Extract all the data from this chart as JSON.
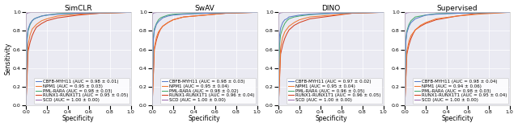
{
  "titles": [
    "SimCLR",
    "SwAV",
    "DINO",
    "Supervised"
  ],
  "xlabel": "Specificity",
  "ylabel": "Sensitivity",
  "classes": [
    "CBFB-MYH11",
    "NPM1",
    "PML-RARA",
    "RUNX1-RUNX1T1",
    "SCD"
  ],
  "colors": [
    "#5b7ec9",
    "#f07832",
    "#4aad6f",
    "#d44020",
    "#9b72b0"
  ],
  "legend_labels": {
    "SimCLR": [
      "CBFB-MYH11 (AUC = 0.98 ± 0.01)",
      "NPM1 (AUC = 0.95 ± 0.03)",
      "PML-RARA (AUC = 0.98 ± 0.03)",
      "RUNX1-RUNX1T1 (AUC = 0.95 ± 0.05)",
      "SCD (AUC = 1.00 ± 0.00)"
    ],
    "SwAV": [
      "CBFB-MYH11 (AUC = 0.98 ± 0.03)",
      "NPM1 (AUC = 0.95 ± 0.04)",
      "PML-RARA (AUC = 0.98 ± 0.02)",
      "RUNX1-RUNX1T1 (AUC = 0.96 ± 0.04)",
      "SCD (AUC = 1.00 ± 0.00)"
    ],
    "DINO": [
      "CBFB-MYH11 (AUC = 0.97 ± 0.02)",
      "NPM1 (AUC = 0.95 ± 0.04)",
      "PML-RARA (AUC = 0.96 ± 0.05)",
      "RUNX1-RUNX1T1 (AUC = 0.96 ± 0.05)",
      "SCD (AUC = 1.00 ± 0.00)"
    ],
    "Supervised": [
      "CBFB-MYH11 (AUC = 0.98 ± 0.04)",
      "NPM1 (AUC = 0.94 ± 0.06)",
      "PML-RARA (AUC = 0.98 ± 0.03)",
      "RUNX1-RUNX1T1 (AUC = 0.95 ± 0.04)",
      "SCD (AUC = 1.00 ± 0.00)"
    ]
  },
  "roc_curves": {
    "SimCLR": {
      "CBFB-MYH11": {
        "fpr": [
          0,
          0.01,
          0.02,
          0.04,
          0.06,
          0.08,
          0.1,
          0.15,
          0.2,
          0.3,
          0.5,
          0.7,
          1.0
        ],
        "tpr": [
          0,
          0.72,
          0.82,
          0.88,
          0.91,
          0.93,
          0.94,
          0.96,
          0.97,
          0.98,
          0.99,
          0.995,
          1.0
        ]
      },
      "NPM1": {
        "fpr": [
          0,
          0.02,
          0.04,
          0.06,
          0.1,
          0.15,
          0.2,
          0.3,
          0.5,
          0.7,
          1.0
        ],
        "tpr": [
          0,
          0.65,
          0.76,
          0.82,
          0.87,
          0.91,
          0.93,
          0.96,
          0.98,
          0.99,
          1.0
        ]
      },
      "PML-RARA": {
        "fpr": [
          0,
          0.01,
          0.02,
          0.04,
          0.06,
          0.08,
          0.1,
          0.15,
          0.2,
          0.3,
          0.5,
          0.7,
          1.0
        ],
        "tpr": [
          0,
          0.7,
          0.8,
          0.87,
          0.91,
          0.93,
          0.94,
          0.96,
          0.97,
          0.985,
          0.99,
          0.995,
          1.0
        ]
      },
      "RUNX1-RUNX1T1": {
        "fpr": [
          0,
          0.02,
          0.04,
          0.06,
          0.08,
          0.1,
          0.15,
          0.2,
          0.3,
          0.5,
          0.7,
          1.0
        ],
        "tpr": [
          0,
          0.58,
          0.68,
          0.75,
          0.8,
          0.84,
          0.88,
          0.91,
          0.94,
          0.97,
          0.99,
          1.0
        ]
      },
      "SCD": {
        "fpr": [
          0,
          0.003,
          0.005,
          0.01,
          0.02,
          0.05,
          0.1,
          1.0
        ],
        "tpr": [
          0,
          0.97,
          0.985,
          0.99,
          0.995,
          1.0,
          1.0,
          1.0
        ]
      }
    },
    "SwAV": {
      "CBFB-MYH11": {
        "fpr": [
          0,
          0.01,
          0.02,
          0.04,
          0.06,
          0.08,
          0.1,
          0.15,
          0.2,
          0.3,
          0.5,
          0.7,
          1.0
        ],
        "tpr": [
          0,
          0.7,
          0.8,
          0.87,
          0.9,
          0.92,
          0.94,
          0.96,
          0.97,
          0.98,
          0.99,
          0.995,
          1.0
        ]
      },
      "NPM1": {
        "fpr": [
          0,
          0.02,
          0.04,
          0.06,
          0.1,
          0.15,
          0.2,
          0.3,
          0.5,
          0.7,
          1.0
        ],
        "tpr": [
          0,
          0.62,
          0.73,
          0.79,
          0.85,
          0.89,
          0.92,
          0.95,
          0.97,
          0.99,
          1.0
        ]
      },
      "PML-RARA": {
        "fpr": [
          0,
          0.01,
          0.02,
          0.04,
          0.06,
          0.08,
          0.1,
          0.15,
          0.2,
          0.3,
          0.5,
          0.7,
          1.0
        ],
        "tpr": [
          0,
          0.72,
          0.82,
          0.88,
          0.92,
          0.94,
          0.95,
          0.97,
          0.98,
          0.985,
          0.99,
          0.995,
          1.0
        ]
      },
      "RUNX1-RUNX1T1": {
        "fpr": [
          0,
          0.02,
          0.04,
          0.06,
          0.08,
          0.1,
          0.15,
          0.2,
          0.3,
          0.5,
          0.7,
          1.0
        ],
        "tpr": [
          0,
          0.6,
          0.7,
          0.77,
          0.82,
          0.85,
          0.89,
          0.92,
          0.95,
          0.97,
          0.99,
          1.0
        ]
      },
      "SCD": {
        "fpr": [
          0,
          0.003,
          0.005,
          0.01,
          0.02,
          0.05,
          0.1,
          1.0
        ],
        "tpr": [
          0,
          0.97,
          0.985,
          0.99,
          0.995,
          1.0,
          1.0,
          1.0
        ]
      }
    },
    "DINO": {
      "CBFB-MYH11": {
        "fpr": [
          0,
          0.005,
          0.01,
          0.02,
          0.04,
          0.06,
          0.08,
          0.1,
          0.15,
          0.2,
          0.3,
          0.5,
          0.7,
          1.0
        ],
        "tpr": [
          0,
          0.65,
          0.75,
          0.83,
          0.89,
          0.92,
          0.93,
          0.95,
          0.96,
          0.97,
          0.98,
          0.99,
          0.995,
          1.0
        ]
      },
      "NPM1": {
        "fpr": [
          0,
          0.02,
          0.04,
          0.06,
          0.1,
          0.15,
          0.2,
          0.3,
          0.5,
          0.7,
          1.0
        ],
        "tpr": [
          0,
          0.62,
          0.73,
          0.79,
          0.85,
          0.89,
          0.92,
          0.95,
          0.97,
          0.99,
          1.0
        ]
      },
      "PML-RARA": {
        "fpr": [
          0,
          0.01,
          0.02,
          0.04,
          0.06,
          0.08,
          0.1,
          0.15,
          0.2,
          0.3,
          0.5,
          0.7,
          1.0
        ],
        "tpr": [
          0,
          0.65,
          0.76,
          0.83,
          0.88,
          0.91,
          0.93,
          0.95,
          0.96,
          0.975,
          0.99,
          0.995,
          1.0
        ]
      },
      "RUNX1-RUNX1T1": {
        "fpr": [
          0,
          0.02,
          0.04,
          0.06,
          0.08,
          0.1,
          0.15,
          0.2,
          0.3,
          0.5,
          0.7,
          1.0
        ],
        "tpr": [
          0,
          0.55,
          0.65,
          0.72,
          0.77,
          0.81,
          0.86,
          0.89,
          0.93,
          0.96,
          0.99,
          1.0
        ]
      },
      "SCD": {
        "fpr": [
          0,
          0.003,
          0.005,
          0.01,
          0.02,
          0.05,
          0.1,
          1.0
        ],
        "tpr": [
          0,
          0.97,
          0.985,
          0.99,
          0.995,
          1.0,
          1.0,
          1.0
        ]
      }
    },
    "Supervised": {
      "CBFB-MYH11": {
        "fpr": [
          0,
          0.01,
          0.02,
          0.04,
          0.06,
          0.08,
          0.1,
          0.15,
          0.2,
          0.3,
          0.5,
          0.7,
          1.0
        ],
        "tpr": [
          0,
          0.68,
          0.78,
          0.85,
          0.89,
          0.91,
          0.93,
          0.95,
          0.97,
          0.98,
          0.99,
          0.995,
          1.0
        ]
      },
      "NPM1": {
        "fpr": [
          0,
          0.02,
          0.04,
          0.06,
          0.1,
          0.15,
          0.2,
          0.3,
          0.5,
          0.7,
          1.0
        ],
        "tpr": [
          0,
          0.58,
          0.69,
          0.75,
          0.81,
          0.86,
          0.89,
          0.93,
          0.96,
          0.98,
          1.0
        ]
      },
      "PML-RARA": {
        "fpr": [
          0,
          0.01,
          0.02,
          0.04,
          0.06,
          0.08,
          0.1,
          0.15,
          0.2,
          0.3,
          0.5,
          0.7,
          1.0
        ],
        "tpr": [
          0,
          0.7,
          0.8,
          0.87,
          0.91,
          0.93,
          0.95,
          0.96,
          0.97,
          0.985,
          0.99,
          0.995,
          1.0
        ]
      },
      "RUNX1-RUNX1T1": {
        "fpr": [
          0,
          0.02,
          0.04,
          0.06,
          0.08,
          0.1,
          0.15,
          0.2,
          0.3,
          0.5,
          0.7,
          1.0
        ],
        "tpr": [
          0,
          0.55,
          0.65,
          0.72,
          0.77,
          0.81,
          0.85,
          0.88,
          0.92,
          0.96,
          0.99,
          1.0
        ]
      },
      "SCD": {
        "fpr": [
          0,
          0.003,
          0.005,
          0.01,
          0.02,
          0.05,
          0.1,
          1.0
        ],
        "tpr": [
          0,
          0.97,
          0.985,
          0.99,
          0.995,
          1.0,
          1.0,
          1.0
        ]
      }
    }
  },
  "bg_color": "#eaeaf2",
  "grid_color": "white",
  "legend_fontsize": 4.0,
  "tick_fontsize": 4.5,
  "label_fontsize": 5.5,
  "title_fontsize": 6.5,
  "linewidth": 0.75
}
